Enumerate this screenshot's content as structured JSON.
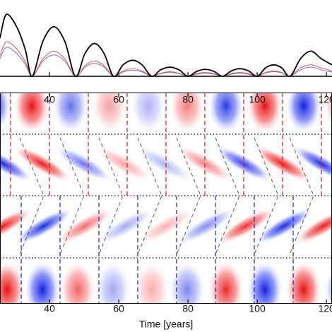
{
  "chart_data": {
    "type": "line",
    "x_label": "Time [years]",
    "x": [
      25.7,
      27.5,
      30.5,
      33,
      35,
      38.1,
      41.25,
      44.4,
      47.5,
      50.25,
      53,
      55.75,
      58.5,
      61.25,
      64,
      66.75,
      69.5,
      72.1,
      74.75,
      77.4,
      80,
      82.5,
      85,
      87.5,
      90,
      92.5,
      95,
      97.5,
      100,
      102.4,
      104.75,
      107.1,
      109.5,
      112.5,
      115.5,
      118.5,
      121.6
    ],
    "series": [
      {
        "name": "total",
        "color": "#000000",
        "values": [
          0.5,
          0.81,
          0.65,
          0.35,
          0,
          0.46,
          0.65,
          0.46,
          0,
          0.3,
          0.43,
          0.3,
          0,
          0.15,
          0.21,
          0.15,
          0,
          0.085,
          0.12,
          0.085,
          0,
          0.064,
          0.09,
          0.064,
          0,
          0.07,
          0.1,
          0.07,
          0,
          0.11,
          0.15,
          0.11,
          0,
          0.23,
          0.33,
          0.23,
          0.15
        ]
      },
      {
        "name": "red",
        "color": "#e8504f",
        "values": [
          0.27,
          0.45,
          0.36,
          0.19,
          0,
          0.23,
          0.33,
          0.23,
          0,
          0.14,
          0.2,
          0.14,
          0,
          0.07,
          0.1,
          0.07,
          0,
          0.04,
          0.06,
          0.04,
          0,
          0.035,
          0.05,
          0.035,
          0,
          0.035,
          0.05,
          0.035,
          0,
          0.05,
          0.07,
          0.05,
          0,
          0.11,
          0.15,
          0.11,
          0.07
        ]
      },
      {
        "name": "blue",
        "color": "#6473e0",
        "values": [
          0.23,
          0.38,
          0.3,
          0.16,
          0,
          0.2,
          0.28,
          0.2,
          0,
          0.12,
          0.17,
          0.12,
          0,
          0.057,
          0.08,
          0.057,
          0,
          0.035,
          0.05,
          0.035,
          0,
          0.028,
          0.04,
          0.028,
          0,
          0.028,
          0.04,
          0.028,
          0,
          0.043,
          0.06,
          0.043,
          0,
          0.085,
          0.12,
          0.085,
          0.054
        ]
      }
    ],
    "xlim": [
      25.7,
      121.6
    ],
    "xticks": [
      40,
      60,
      80,
      100,
      120
    ],
    "ylim": [
      0,
      1
    ]
  }
}
